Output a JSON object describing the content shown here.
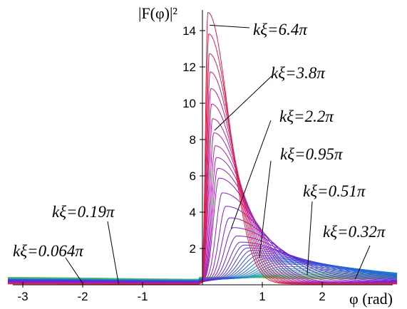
{
  "chart_data": {
    "type": "line",
    "title": "",
    "ylabel": "|F(φ)|²",
    "xlabel": "φ (rad)",
    "xlim": [
      -3.25,
      3.25
    ],
    "ylim": [
      0,
      15.5
    ],
    "x_ticks": [
      -3,
      -2,
      -1,
      1,
      2
    ],
    "x_tick_labels": [
      "-3",
      "-2",
      "-1",
      "1",
      "2"
    ],
    "y_ticks": [
      2,
      4,
      6,
      8,
      10,
      12,
      14
    ],
    "y_tick_labels": [
      "2",
      "4",
      "6",
      "8",
      "10",
      "12",
      "14"
    ],
    "grid": false,
    "legend": "none",
    "color_scale": [
      "#7fbf3f",
      "#1fb0a0",
      "#2060e0",
      "#7020d0",
      "#b020b0",
      "#e02040"
    ],
    "series": [
      {
        "kxi_over_pi": 0.064,
        "label": "kξ=0.064π",
        "peak_x": 1.57,
        "peak_y": 0.33
      },
      {
        "kxi_over_pi": 0.19,
        "label": "kξ=0.19π",
        "peak_x": 1.5,
        "peak_y": 0.6
      },
      {
        "kxi_over_pi": 0.32,
        "label": "kξ=0.32π",
        "peak_x": 1.3,
        "peak_y": 1.15
      },
      {
        "kxi_over_pi": 0.51,
        "label": "kξ=0.51π",
        "peak_x": 0.95,
        "peak_y": 1.6
      },
      {
        "kxi_over_pi": 0.95,
        "label": "kξ=0.95π",
        "peak_x": 0.62,
        "peak_y": 2.4
      },
      {
        "kxi_over_pi": 2.2,
        "label": "kξ=2.2π",
        "peak_x": 0.28,
        "peak_y": 5.8
      },
      {
        "kxi_over_pi": 3.8,
        "label": "kξ=3.8π",
        "peak_x": 0.16,
        "peak_y": 9.5
      },
      {
        "kxi_over_pi": 6.4,
        "label": "kξ=6.4π",
        "peak_x": 0.09,
        "peak_y": 15.0
      }
    ],
    "annotations": [
      {
        "text": "kξ=6.4π",
        "series_index": 7,
        "point": [
          0.12,
          14.3
        ]
      },
      {
        "text": "kξ=3.8π",
        "series_index": 6,
        "point": [
          0.2,
          8.5
        ]
      },
      {
        "text": "kξ=2.2π",
        "series_index": 5,
        "point": [
          0.48,
          3.1
        ]
      },
      {
        "text": "kξ=0.95π",
        "series_index": 4,
        "point": [
          0.95,
          1.5
        ]
      },
      {
        "text": "kξ=0.51π",
        "series_index": 3,
        "point": [
          1.75,
          0.55
        ]
      },
      {
        "text": "kξ=0.32π",
        "series_index": 2,
        "point": [
          2.55,
          0.3
        ]
      },
      {
        "text": "kξ=0.19π",
        "series_index": 1,
        "point": [
          -1.4,
          0.05
        ]
      },
      {
        "text": "kξ=0.064π",
        "series_index": 0,
        "point": [
          -2.0,
          0.08
        ]
      }
    ]
  }
}
